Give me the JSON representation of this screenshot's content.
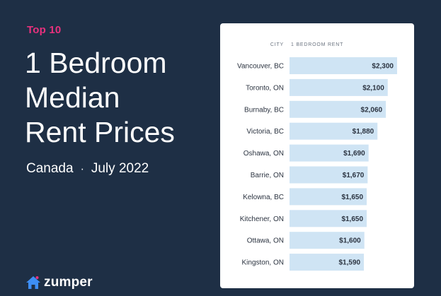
{
  "header": {
    "kicker": "Top 10",
    "title_lines": [
      "1 Bedroom",
      "Median",
      "Rent Prices"
    ],
    "region": "Canada",
    "separator": "·",
    "date": "July 2022"
  },
  "brand": {
    "name": "zumper",
    "icon": "house-logo-icon",
    "color": "#3d8ef5"
  },
  "colors": {
    "background": "#1e2f45",
    "accent": "#e8317d",
    "bar": "#cfe4f4"
  },
  "chart_data": {
    "type": "bar",
    "orientation": "horizontal",
    "column_headers": [
      "CITY",
      "1 BEDROOM RENT"
    ],
    "categories": [
      "Vancouver, BC",
      "Toronto, ON",
      "Burnaby, BC",
      "Victoria, BC",
      "Oshawa, ON",
      "Barrie, ON",
      "Kelowna, BC",
      "Kitchener, ON",
      "Ottawa, ON",
      "Kingston, ON"
    ],
    "values": [
      2300,
      2100,
      2060,
      1880,
      1690,
      1670,
      1650,
      1650,
      1600,
      1590
    ],
    "value_labels": [
      "$2,300",
      "$2,100",
      "$2,060",
      "$1,880",
      "$1,690",
      "$1,670",
      "$1,650",
      "$1,650",
      "$1,600",
      "$1,590"
    ],
    "grid": false
  }
}
